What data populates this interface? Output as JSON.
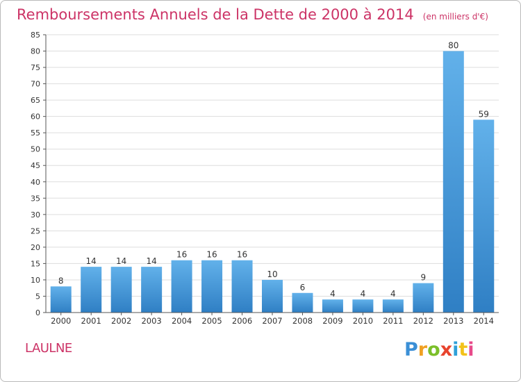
{
  "title": "Remboursements Annuels de la Dette de 2000 à 2014",
  "subtitle": "(en milliers d'€)",
  "commune": "LAULNE",
  "brand": {
    "letters": [
      "P",
      "r",
      "o",
      "x",
      "i",
      "t",
      "i"
    ],
    "colors": [
      "#3a8fd6",
      "#f0a022",
      "#7bbf2a",
      "#e8432d",
      "#2fa0d8",
      "#f2c21a",
      "#e84a8a"
    ]
  },
  "colors": {
    "bar": "#3a8fd6",
    "bar_light": "#62b1ea",
    "title": "#cc3366",
    "grid": "#dddddd",
    "axis": "#555555"
  },
  "chart_data": {
    "type": "bar",
    "title": "Remboursements Annuels de la Dette de 2000 à 2014",
    "subtitle": "(en milliers d'€)",
    "xlabel": "",
    "ylabel": "",
    "ylim": [
      0,
      85
    ],
    "yticks": [
      0,
      5,
      10,
      15,
      20,
      25,
      30,
      35,
      40,
      45,
      50,
      55,
      60,
      65,
      70,
      75,
      80,
      85
    ],
    "grid": true,
    "categories": [
      "2000",
      "2001",
      "2002",
      "2003",
      "2004",
      "2005",
      "2006",
      "2007",
      "2008",
      "2009",
      "2010",
      "2011",
      "2012",
      "2013",
      "2014"
    ],
    "values": [
      8,
      14,
      14,
      14,
      16,
      16,
      16,
      10,
      6,
      4,
      4,
      4,
      9,
      80,
      59
    ]
  }
}
